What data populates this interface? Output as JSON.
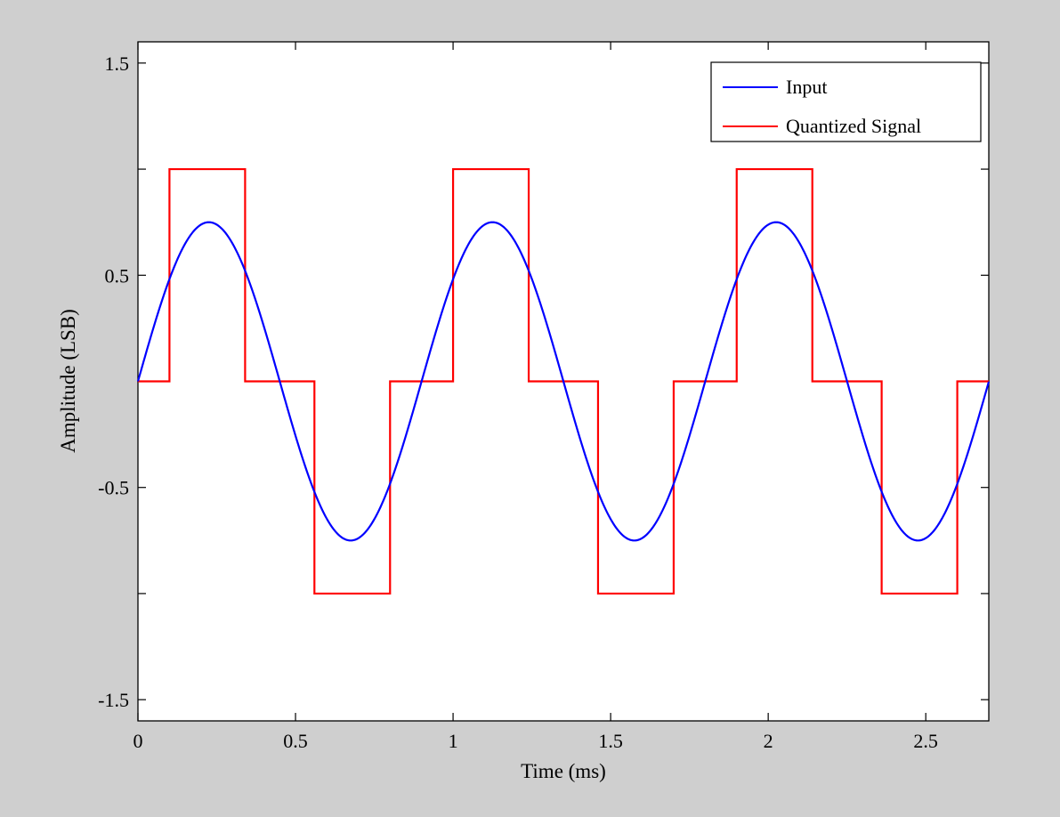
{
  "chart_data": {
    "type": "line",
    "title": "",
    "xlabel": "Time (ms)",
    "ylabel": "Amplitude (LSB)",
    "xlim": [
      0,
      2.7
    ],
    "ylim": [
      -1.6,
      1.6
    ],
    "x_ticks": [
      0,
      0.5,
      1,
      1.5,
      2,
      2.5
    ],
    "x_tick_labels": [
      "0",
      "0.5",
      "1",
      "1.5",
      "2",
      "2.5"
    ],
    "y_ticks": [
      1.5,
      0.5,
      -0.5,
      -1.5
    ],
    "y_tick_labels": [
      "1.5",
      "0.5",
      "-0.5",
      "-1.5"
    ],
    "y_minor_ticks": [
      1,
      0,
      -1
    ],
    "grid": false,
    "legend": {
      "position": "top-right"
    },
    "series": [
      {
        "name": "Input",
        "color": "#0000ff",
        "function": "sine",
        "amplitude": 0.75,
        "frequency_khz": 1.111,
        "x_start": 0,
        "x_end": 2.7
      },
      {
        "name": "Quantized Signal",
        "color": "#ff0000",
        "step": true,
        "x": [
          0,
          0.1,
          0.1,
          0.34,
          0.34,
          0.56,
          0.56,
          0.8,
          0.8,
          1.0,
          1.0,
          1.24,
          1.24,
          1.46,
          1.46,
          1.7,
          1.7,
          1.9,
          1.9,
          2.14,
          2.14,
          2.36,
          2.36,
          2.6,
          2.6,
          2.7
        ],
        "y": [
          0,
          0,
          1,
          1,
          0,
          0,
          -1,
          -1,
          0,
          0,
          1,
          1,
          0,
          0,
          -1,
          -1,
          0,
          0,
          1,
          1,
          0,
          0,
          -1,
          -1,
          0,
          0
        ]
      }
    ]
  }
}
